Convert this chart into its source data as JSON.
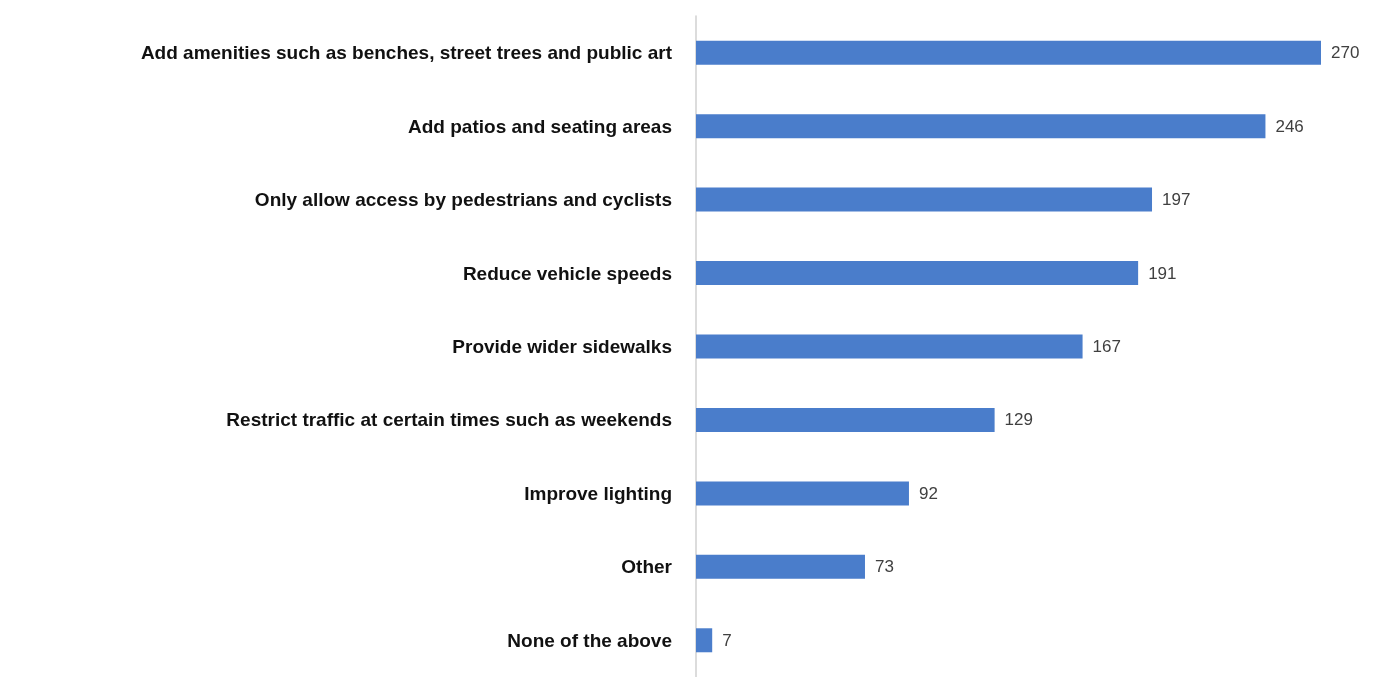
{
  "chart_data": {
    "type": "bar",
    "orientation": "horizontal",
    "data_labels": true,
    "grid": false,
    "categories": [
      "Add amenities such as benches, street trees and public art",
      "Add patios and seating areas",
      "Only allow access by pedestrians and cyclists",
      "Reduce vehicle speeds",
      "Provide wider sidewalks",
      "Restrict traffic at certain times such as weekends",
      "Improve lighting",
      "Other",
      "None of the above"
    ],
    "values": [
      270,
      246,
      197,
      191,
      167,
      129,
      92,
      73,
      7
    ],
    "color": "#4a7dcb"
  }
}
